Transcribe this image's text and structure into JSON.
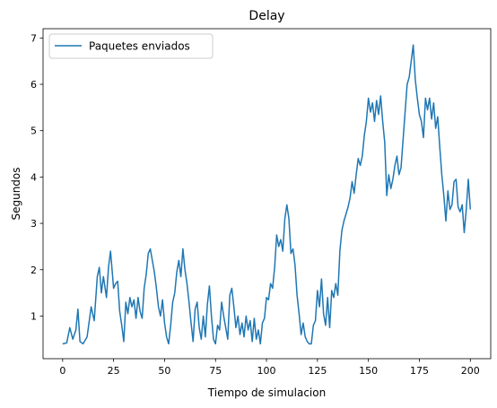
{
  "chart_data": {
    "type": "line",
    "title": "Delay",
    "xlabel": "Tiempo de simulacion",
    "ylabel": "Segundos",
    "xlim": [
      -9.6,
      210.0
    ],
    "ylim": [
      0.08,
      7.2
    ],
    "xticks": [
      0,
      25,
      50,
      75,
      100,
      125,
      150,
      175,
      200
    ],
    "yticks": [
      1,
      2,
      3,
      4,
      5,
      6,
      7
    ],
    "grid": false,
    "legend": {
      "position": "upper left"
    },
    "series": [
      {
        "name": "Paquetes enviados",
        "color": "#1f77b4",
        "points": [
          [
            0,
            0.4
          ],
          [
            2,
            0.42
          ],
          [
            3.5,
            0.75
          ],
          [
            5,
            0.5
          ],
          [
            6.5,
            0.7
          ],
          [
            7.5,
            1.15
          ],
          [
            8.5,
            0.45
          ],
          [
            10,
            0.4
          ],
          [
            12,
            0.55
          ],
          [
            14,
            1.2
          ],
          [
            15.5,
            0.9
          ],
          [
            17,
            1.85
          ],
          [
            18,
            2.05
          ],
          [
            19,
            1.5
          ],
          [
            20,
            1.85
          ],
          [
            21.5,
            1.4
          ],
          [
            22.5,
            2.05
          ],
          [
            23.5,
            2.4
          ],
          [
            25,
            1.6
          ],
          [
            26,
            1.7
          ],
          [
            27,
            1.75
          ],
          [
            28,
            1.1
          ],
          [
            29,
            0.8
          ],
          [
            30,
            0.45
          ],
          [
            31,
            1.3
          ],
          [
            32,
            1.05
          ],
          [
            33,
            1.4
          ],
          [
            34,
            1.2
          ],
          [
            35,
            1.35
          ],
          [
            36,
            0.95
          ],
          [
            37,
            1.4
          ],
          [
            38,
            1.1
          ],
          [
            39,
            0.95
          ],
          [
            40,
            1.6
          ],
          [
            41,
            1.9
          ],
          [
            42,
            2.35
          ],
          [
            43,
            2.45
          ],
          [
            44,
            2.2
          ],
          [
            45,
            1.95
          ],
          [
            46,
            1.6
          ],
          [
            47,
            1.2
          ],
          [
            48,
            1.0
          ],
          [
            49,
            1.35
          ],
          [
            50,
            0.85
          ],
          [
            51,
            0.55
          ],
          [
            52,
            0.4
          ],
          [
            53,
            0.8
          ],
          [
            54,
            1.3
          ],
          [
            55,
            1.5
          ],
          [
            56,
            1.95
          ],
          [
            57,
            2.2
          ],
          [
            58,
            1.85
          ],
          [
            59,
            2.45
          ],
          [
            60,
            2.0
          ],
          [
            61,
            1.7
          ],
          [
            62,
            1.3
          ],
          [
            63,
            0.85
          ],
          [
            64,
            0.45
          ],
          [
            65,
            1.15
          ],
          [
            66,
            1.3
          ],
          [
            67,
            0.75
          ],
          [
            68,
            0.5
          ],
          [
            69,
            1.0
          ],
          [
            70,
            0.55
          ],
          [
            71,
            1.25
          ],
          [
            72,
            1.65
          ],
          [
            73,
            1.0
          ],
          [
            74,
            0.5
          ],
          [
            75,
            0.4
          ],
          [
            76,
            0.8
          ],
          [
            77,
            0.7
          ],
          [
            78,
            1.3
          ],
          [
            79,
            1.0
          ],
          [
            80,
            0.75
          ],
          [
            81,
            0.5
          ],
          [
            82,
            1.45
          ],
          [
            83,
            1.6
          ],
          [
            84,
            1.2
          ],
          [
            85,
            0.75
          ],
          [
            86,
            1.0
          ],
          [
            87,
            0.6
          ],
          [
            88,
            0.85
          ],
          [
            89,
            0.55
          ],
          [
            90,
            1.0
          ],
          [
            91,
            0.7
          ],
          [
            92,
            0.9
          ],
          [
            93,
            0.45
          ],
          [
            94,
            0.95
          ],
          [
            95,
            0.5
          ],
          [
            96,
            0.7
          ],
          [
            97,
            0.4
          ],
          [
            98,
            0.85
          ],
          [
            99,
            0.95
          ],
          [
            100,
            1.4
          ],
          [
            101,
            1.35
          ],
          [
            102,
            1.7
          ],
          [
            103,
            1.6
          ],
          [
            104,
            2.05
          ],
          [
            105,
            2.75
          ],
          [
            106,
            2.5
          ],
          [
            107,
            2.65
          ],
          [
            108,
            2.4
          ],
          [
            109,
            3.1
          ],
          [
            110,
            3.4
          ],
          [
            111,
            3.1
          ],
          [
            112,
            2.35
          ],
          [
            113,
            2.45
          ],
          [
            114,
            2.1
          ],
          [
            115,
            1.45
          ],
          [
            116,
            1.05
          ],
          [
            117,
            0.6
          ],
          [
            118,
            0.85
          ],
          [
            119,
            0.55
          ],
          [
            120,
            0.45
          ],
          [
            121,
            0.4
          ],
          [
            122,
            0.4
          ],
          [
            123,
            0.8
          ],
          [
            124,
            0.9
          ],
          [
            125,
            1.55
          ],
          [
            126,
            1.2
          ],
          [
            127,
            1.8
          ],
          [
            128,
            1.05
          ],
          [
            129,
            0.8
          ],
          [
            130,
            1.4
          ],
          [
            131,
            0.75
          ],
          [
            132,
            1.55
          ],
          [
            133,
            1.4
          ],
          [
            134,
            1.7
          ],
          [
            135,
            1.45
          ],
          [
            136,
            2.4
          ],
          [
            137,
            2.85
          ],
          [
            138,
            3.05
          ],
          [
            139,
            3.2
          ],
          [
            140,
            3.35
          ],
          [
            141,
            3.55
          ],
          [
            142,
            3.9
          ],
          [
            143,
            3.65
          ],
          [
            144,
            4.05
          ],
          [
            145,
            4.4
          ],
          [
            146,
            4.25
          ],
          [
            147,
            4.45
          ],
          [
            148,
            4.9
          ],
          [
            149,
            5.2
          ],
          [
            150,
            5.7
          ],
          [
            151,
            5.4
          ],
          [
            152,
            5.6
          ],
          [
            153,
            5.2
          ],
          [
            154,
            5.65
          ],
          [
            155,
            5.35
          ],
          [
            156,
            5.75
          ],
          [
            157,
            5.2
          ],
          [
            158,
            4.75
          ],
          [
            159,
            3.6
          ],
          [
            160,
            4.05
          ],
          [
            161,
            3.75
          ],
          [
            162,
            3.95
          ],
          [
            163,
            4.25
          ],
          [
            164,
            4.45
          ],
          [
            165,
            4.05
          ],
          [
            166,
            4.2
          ],
          [
            167,
            4.8
          ],
          [
            168,
            5.4
          ],
          [
            169,
            6.0
          ],
          [
            170,
            6.15
          ],
          [
            171,
            6.5
          ],
          [
            172,
            6.85
          ],
          [
            173,
            6.1
          ],
          [
            174,
            5.7
          ],
          [
            175,
            5.35
          ],
          [
            176,
            5.2
          ],
          [
            177,
            4.85
          ],
          [
            178,
            5.7
          ],
          [
            179,
            5.45
          ],
          [
            180,
            5.7
          ],
          [
            181,
            5.25
          ],
          [
            182,
            5.6
          ],
          [
            183,
            5.05
          ],
          [
            184,
            5.3
          ],
          [
            185,
            4.65
          ],
          [
            186,
            4.05
          ],
          [
            187,
            3.6
          ],
          [
            188,
            3.05
          ],
          [
            189,
            3.7
          ],
          [
            190,
            3.3
          ],
          [
            191,
            3.4
          ],
          [
            192,
            3.9
          ],
          [
            193,
            3.95
          ],
          [
            194,
            3.35
          ],
          [
            195,
            3.25
          ],
          [
            196,
            3.4
          ],
          [
            197,
            2.8
          ],
          [
            198,
            3.3
          ],
          [
            199,
            3.95
          ],
          [
            200,
            3.3
          ]
        ]
      }
    ]
  }
}
